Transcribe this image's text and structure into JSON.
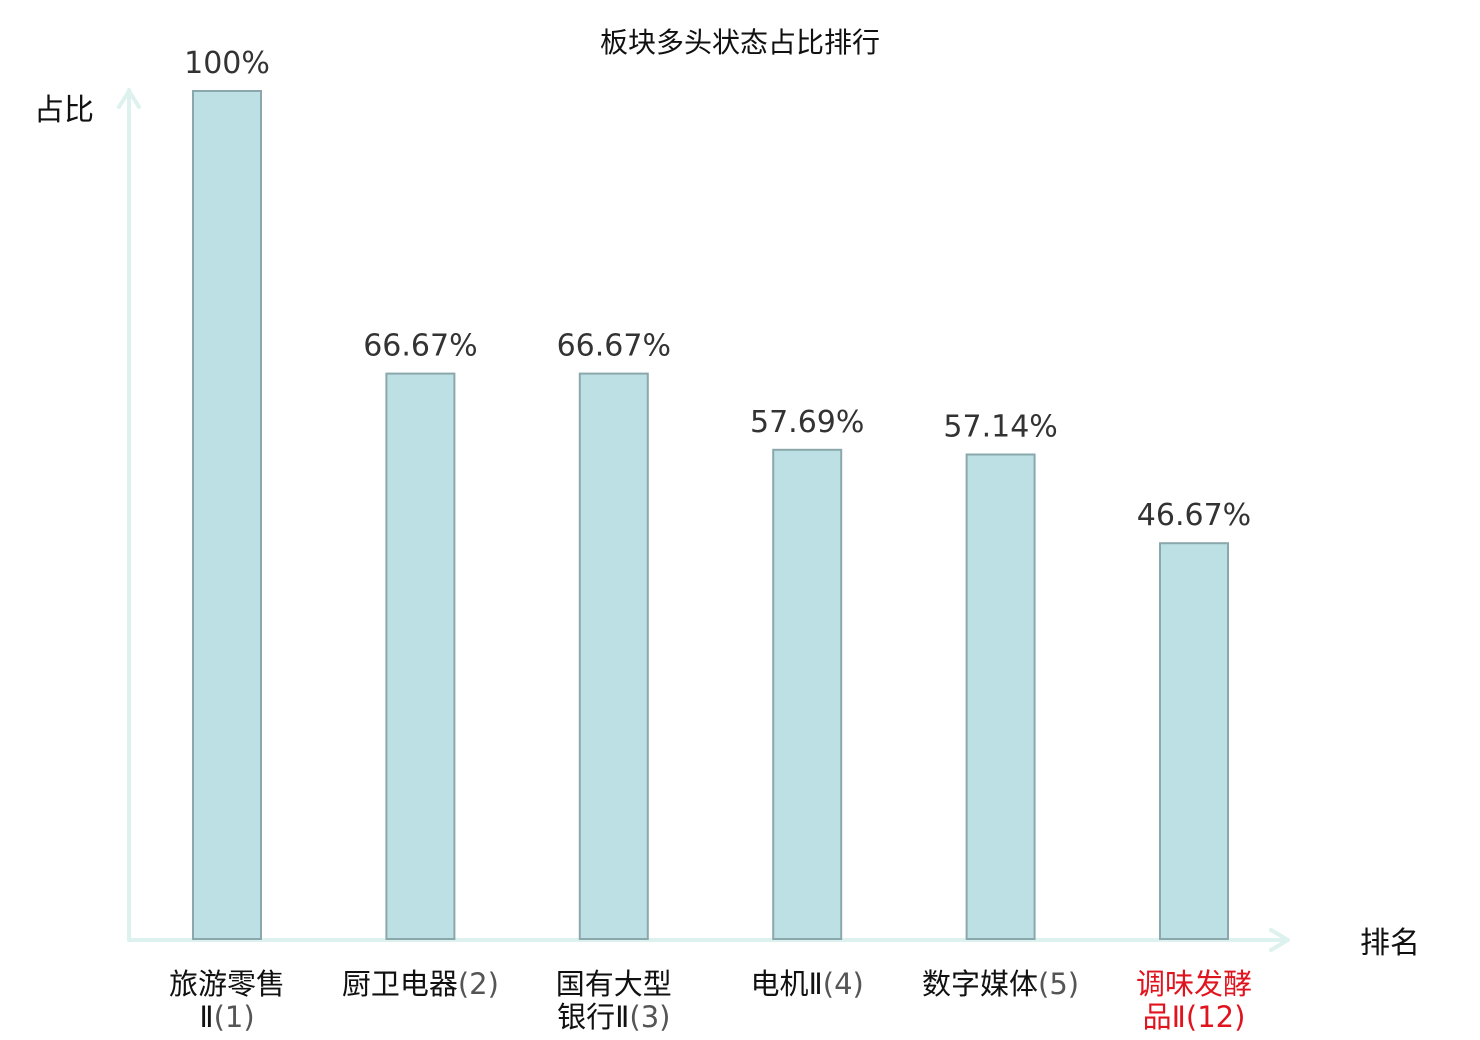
{
  "chart_data": {
    "type": "bar",
    "title": "板块多头状态占比排行",
    "ylabel": "占比",
    "xlabel": "排名",
    "ylim": [
      0,
      100
    ],
    "value_suffix": "%",
    "grid": false,
    "categories": [
      {
        "lines": [
          {
            "name": "旅游零售",
            "suffix": ""
          },
          {
            "name": "Ⅱ",
            "suffix": "(1)"
          }
        ],
        "highlight": false
      },
      {
        "lines": [
          {
            "name": "厨卫电器",
            "suffix": "(2)"
          }
        ],
        "highlight": false
      },
      {
        "lines": [
          {
            "name": "国有大型",
            "suffix": ""
          },
          {
            "name": "银行Ⅱ",
            "suffix": "(3)"
          }
        ],
        "highlight": false
      },
      {
        "lines": [
          {
            "name": "电机Ⅱ",
            "suffix": "(4)"
          }
        ],
        "highlight": false
      },
      {
        "lines": [
          {
            "name": "数字媒体",
            "suffix": "(5)"
          }
        ],
        "highlight": false
      },
      {
        "lines": [
          {
            "name": "调味发酵",
            "suffix": ""
          },
          {
            "name": "品Ⅱ",
            "suffix": "(12)"
          }
        ],
        "highlight": true
      }
    ],
    "values": [
      100,
      66.67,
      66.67,
      57.69,
      57.14,
      46.67
    ],
    "value_labels": [
      "100%",
      "66.67%",
      "66.67%",
      "57.69%",
      "57.14%",
      "46.67%"
    ],
    "colors": {
      "bar_fill": "#bce0e3",
      "bar_stroke": "#8aa8ab",
      "axis": "#ddf1ef",
      "highlight_text": "#e0141e",
      "text": "#111111",
      "category_number": "#555555",
      "value_text": "#333333"
    }
  }
}
